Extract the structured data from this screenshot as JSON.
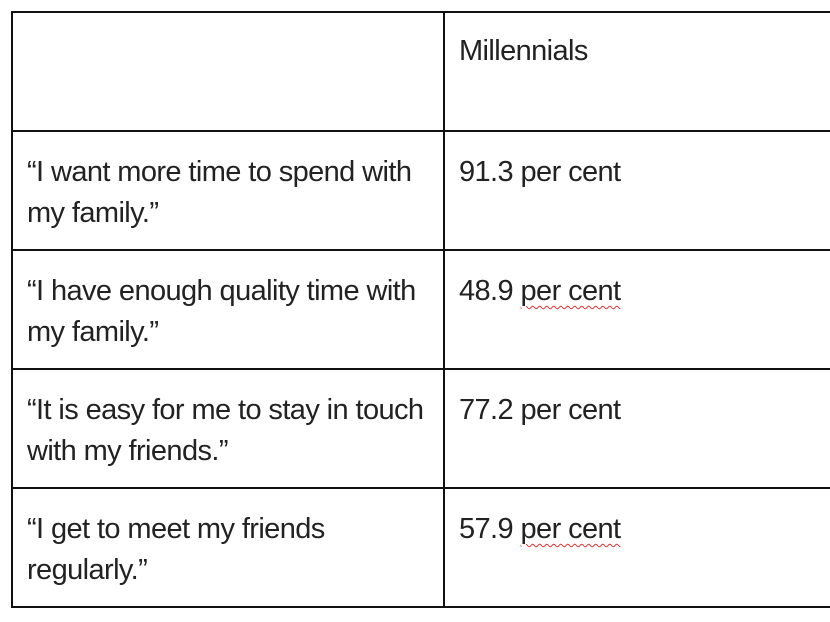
{
  "header": {
    "col1": "",
    "col2": "Millennials"
  },
  "rows": [
    {
      "statement": "“I want more time to spend with my family.”",
      "number": "91.3",
      "unit": "per cent",
      "spellcheck": false
    },
    {
      "statement": "“I have enough quality time with my family.”",
      "number": "48.9",
      "unit": "per cent",
      "spellcheck": true
    },
    {
      "statement": "“It is easy for me to stay in touch with my friends.”",
      "number": "77.2",
      "unit": "per cent",
      "spellcheck": false
    },
    {
      "statement": "“I get to meet my friends regularly.”",
      "number": "57.9",
      "unit": "per cent",
      "spellcheck": true
    }
  ],
  "colors": {
    "spellcheck_underline": "#dd3333",
    "border": "#111111"
  }
}
